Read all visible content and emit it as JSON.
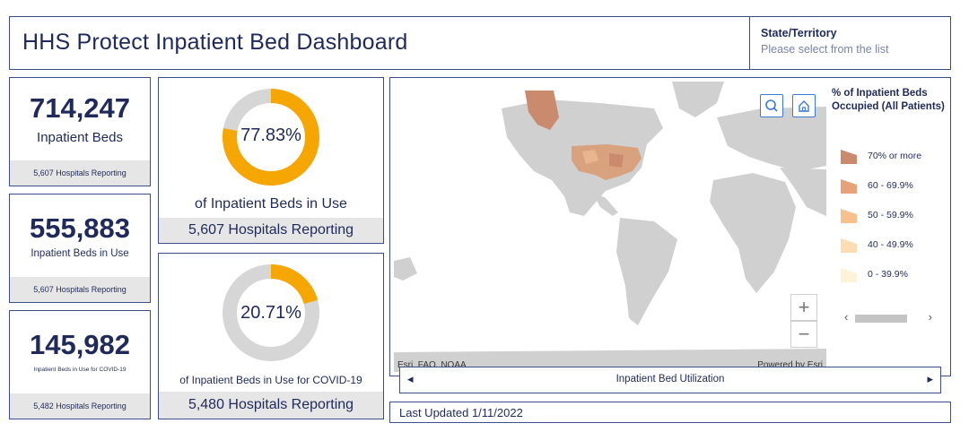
{
  "header": {
    "title": "HHS Protect Inpatient Bed Dashboard",
    "state_label": "State/Territory",
    "state_placeholder": "Please select from the list"
  },
  "stats": [
    {
      "value": "714,247",
      "label": "Inpatient Beds",
      "footer": "5,607 Hospitals Reporting"
    },
    {
      "value": "555,883",
      "label": "Inpatient Beds in Use",
      "footer": "5,607 Hospitals Reporting"
    },
    {
      "value": "145,982",
      "label": "Inpatient Beds in Use for COVID-19",
      "footer": "5,482 Hospitals Reporting"
    }
  ],
  "donuts": [
    {
      "percent_text": "77.83%",
      "percent": 77.83,
      "caption": "of Inpatient Beds in Use",
      "footer": "5,607 Hospitals Reporting"
    },
    {
      "percent_text": "20.71%",
      "percent": 20.71,
      "caption": "of Inpatient Beds in Use for COVID-19",
      "footer": "5,480 Hospitals Reporting"
    }
  ],
  "map": {
    "attribution": "Esri, FAO, NOAA",
    "powered_by": "Powered by Esri",
    "zoom_in": "+",
    "zoom_out": "−",
    "footer_label": "Inpatient Bed Utilization",
    "prev_arrow": "◂",
    "next_arrow": "▸",
    "search_icon": "search-icon",
    "home_icon": "home-icon"
  },
  "legend": {
    "title": "% of Inpatient Beds Occupied (All Patients)",
    "items": [
      {
        "label": "70% or more",
        "color": "#c98a6e"
      },
      {
        "label": "60 - 69.9%",
        "color": "#e8a27a"
      },
      {
        "label": "50 - 59.9%",
        "color": "#f6c08f"
      },
      {
        "label": "40 - 49.9%",
        "color": "#fbdcb3"
      },
      {
        "label": "0 - 39.9%",
        "color": "#fdf3d8"
      }
    ],
    "scroll_left": "‹",
    "scroll_right": "›"
  },
  "colors": {
    "accent_orange": "#f5a600",
    "donut_track": "#d6d6d6",
    "navy": "#1f2a5a",
    "land": "#d0d0d0",
    "us_fill": "#d9a27f"
  },
  "updated": "Last Updated 1/11/2022"
}
